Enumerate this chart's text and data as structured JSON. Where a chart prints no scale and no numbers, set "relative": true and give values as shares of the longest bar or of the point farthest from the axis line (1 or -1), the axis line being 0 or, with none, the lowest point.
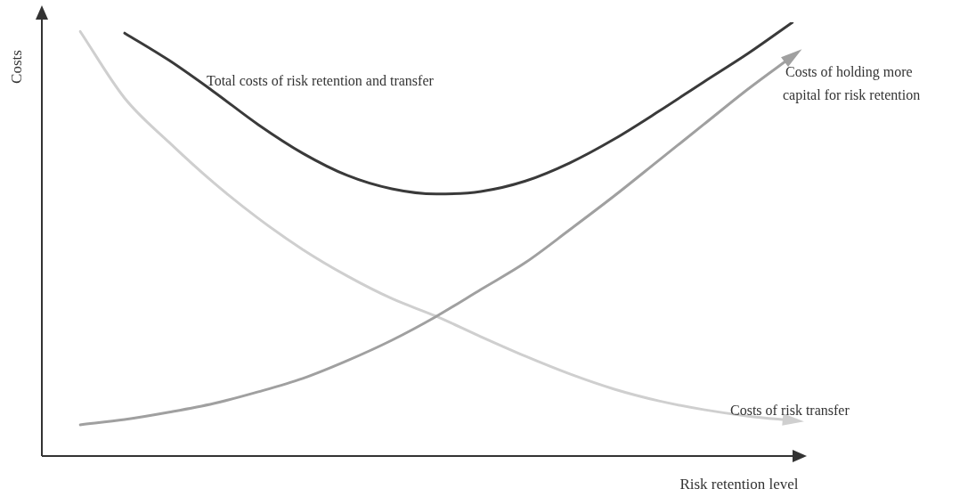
{
  "chart_data": {
    "type": "line",
    "relative": true,
    "xlabel": "Risk retention level",
    "ylabel": "Costs",
    "grid": false,
    "legend": false,
    "marker": "none",
    "line_style": "solid",
    "categories": [
      null,
      null,
      null,
      null,
      null,
      null,
      null,
      null,
      null,
      null,
      null,
      null,
      null,
      null,
      null,
      null,
      null
    ],
    "series": [
      {
        "name": "Total costs of risk retention and transfer",
        "color": "#3a3a3a",
        "values": [
          null,
          0.975,
          0.912,
          0.84,
          0.764,
          0.698,
          0.647,
          0.616,
          0.604,
          0.61,
          0.634,
          0.676,
          0.731,
          0.795,
          0.862,
          0.928,
          1
        ]
      },
      {
        "name": "Costs of holding more capital for risk retention",
        "color": "#a0a0a0",
        "values": [
          0.072,
          0.084,
          0.101,
          0.121,
          0.148,
          0.179,
          0.22,
          0.267,
          0.322,
          0.384,
          0.446,
          0.522,
          0.6,
          0.682,
          0.764,
          0.846,
          0.922
        ]
      },
      {
        "name": "Costs of risk transfer",
        "color": "#cfcfcf",
        "values": [
          0.979,
          0.825,
          0.723,
          0.63,
          0.548,
          0.476,
          0.415,
          0.363,
          0.322,
          0.275,
          0.23,
          0.189,
          0.154,
          0.127,
          0.107,
          0.092,
          0.082
        ]
      }
    ]
  }
}
